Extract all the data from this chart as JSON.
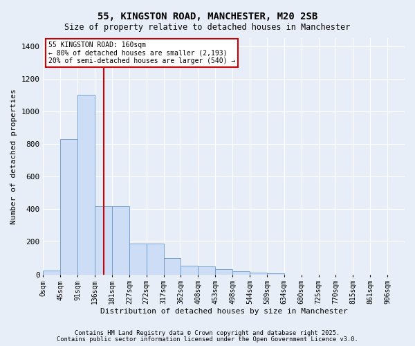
{
  "title1": "55, KINGSTON ROAD, MANCHESTER, M20 2SB",
  "title2": "Size of property relative to detached houses in Manchester",
  "xlabel": "Distribution of detached houses by size in Manchester",
  "ylabel": "Number of detached properties",
  "bar_labels": [
    "0sqm",
    "45sqm",
    "91sqm",
    "136sqm",
    "181sqm",
    "227sqm",
    "272sqm",
    "317sqm",
    "362sqm",
    "408sqm",
    "453sqm",
    "498sqm",
    "544sqm",
    "589sqm",
    "634sqm",
    "680sqm",
    "725sqm",
    "770sqm",
    "815sqm",
    "861sqm",
    "906sqm"
  ],
  "bar_values": [
    25,
    830,
    1100,
    420,
    420,
    190,
    190,
    100,
    55,
    50,
    30,
    20,
    10,
    5,
    0,
    0,
    0,
    0,
    0,
    0,
    0
  ],
  "bar_color": "#ccddf5",
  "bar_edge_color": "#6699cc",
  "red_line_x": 3.53,
  "annotation_text": "55 KINGSTON ROAD: 160sqm\n← 80% of detached houses are smaller (2,193)\n20% of semi-detached houses are larger (540) →",
  "annotation_box_color": "#ffffff",
  "annotation_box_edge_color": "#cc0000",
  "red_line_color": "#cc0000",
  "ylim": [
    0,
    1450
  ],
  "yticks": [
    0,
    200,
    400,
    600,
    800,
    1000,
    1200,
    1400
  ],
  "background_color": "#e8eef8",
  "grid_color": "#ffffff",
  "footnote1": "Contains HM Land Registry data © Crown copyright and database right 2025.",
  "footnote2": "Contains public sector information licensed under the Open Government Licence v3.0."
}
